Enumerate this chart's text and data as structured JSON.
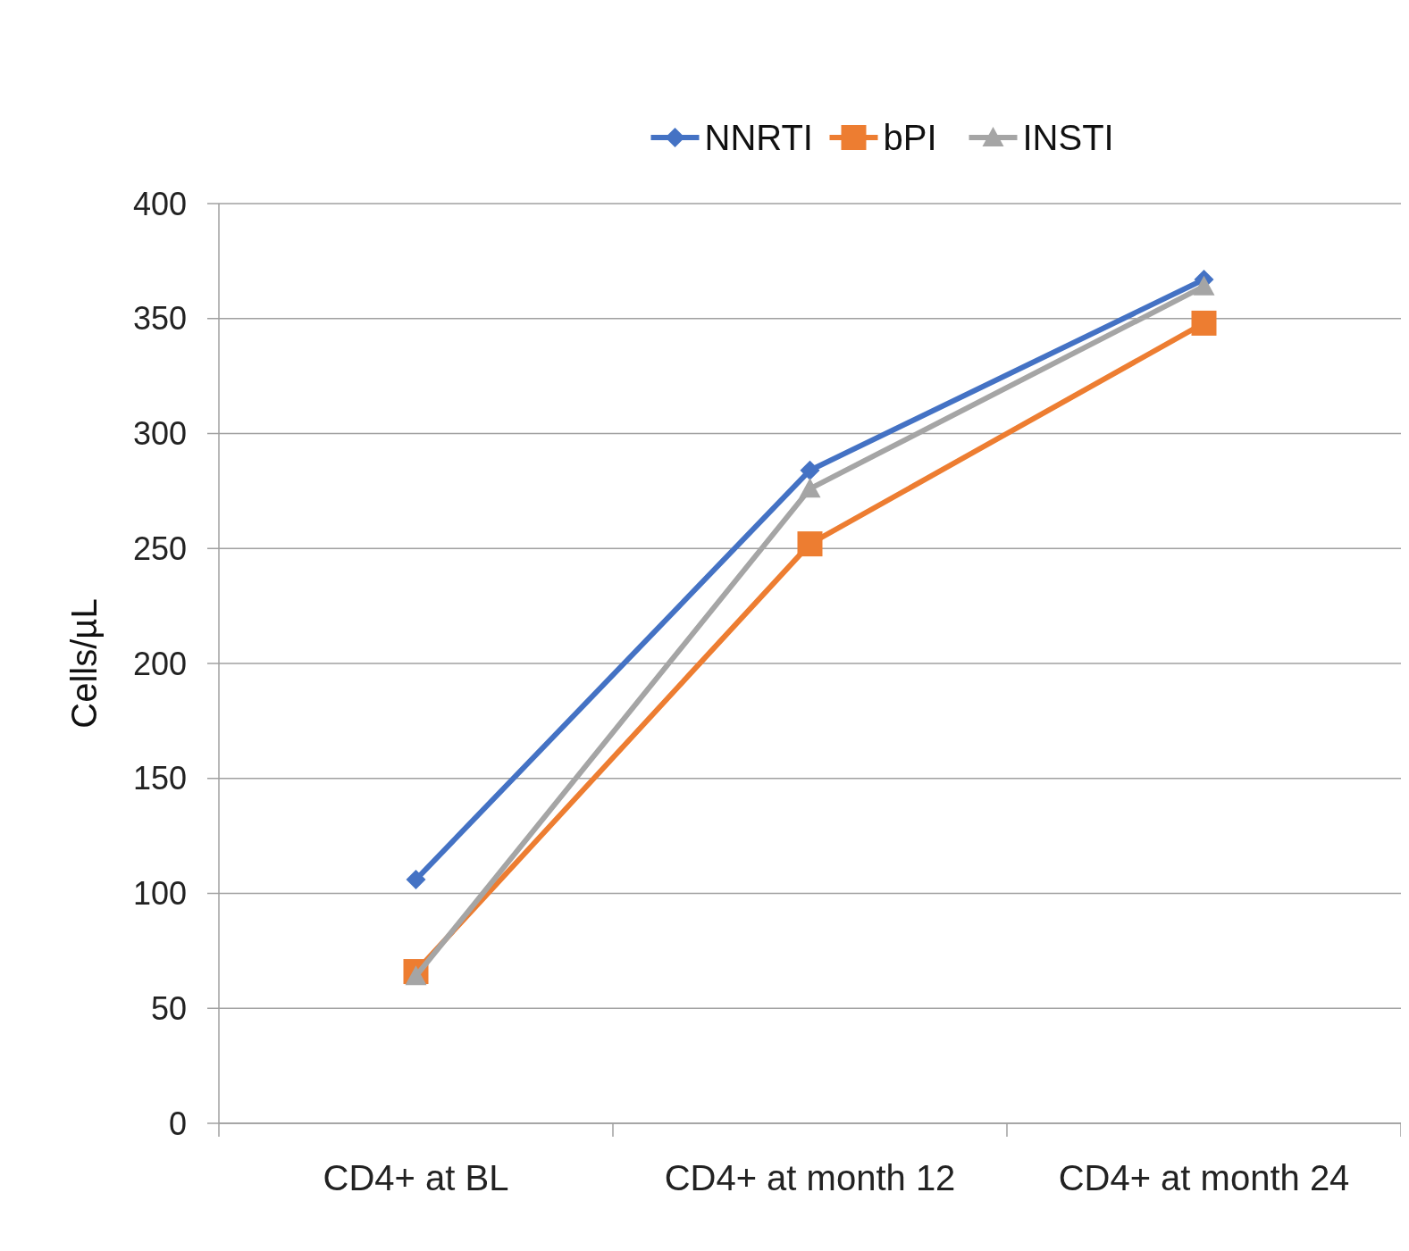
{
  "chart_data": {
    "type": "line",
    "ylabel": "Cells/µL",
    "categories": [
      "CD4+ at BL",
      "CD4+ at month 12",
      "CD4+ at month 24"
    ],
    "series": [
      {
        "name": "NNRTI",
        "color": "#4472c4",
        "marker": "diamond",
        "values": [
          106,
          284,
          367
        ]
      },
      {
        "name": "bPI",
        "color": "#ed7d31",
        "marker": "square",
        "values": [
          66,
          252,
          348
        ]
      },
      {
        "name": "INSTI",
        "color": "#a5a5a5",
        "marker": "triangle",
        "values": [
          64,
          276,
          364
        ]
      }
    ],
    "ylim": [
      0,
      400
    ],
    "yticks": [
      0,
      50,
      100,
      150,
      200,
      250,
      300,
      350,
      400
    ],
    "grid": "y",
    "legend": "top"
  }
}
